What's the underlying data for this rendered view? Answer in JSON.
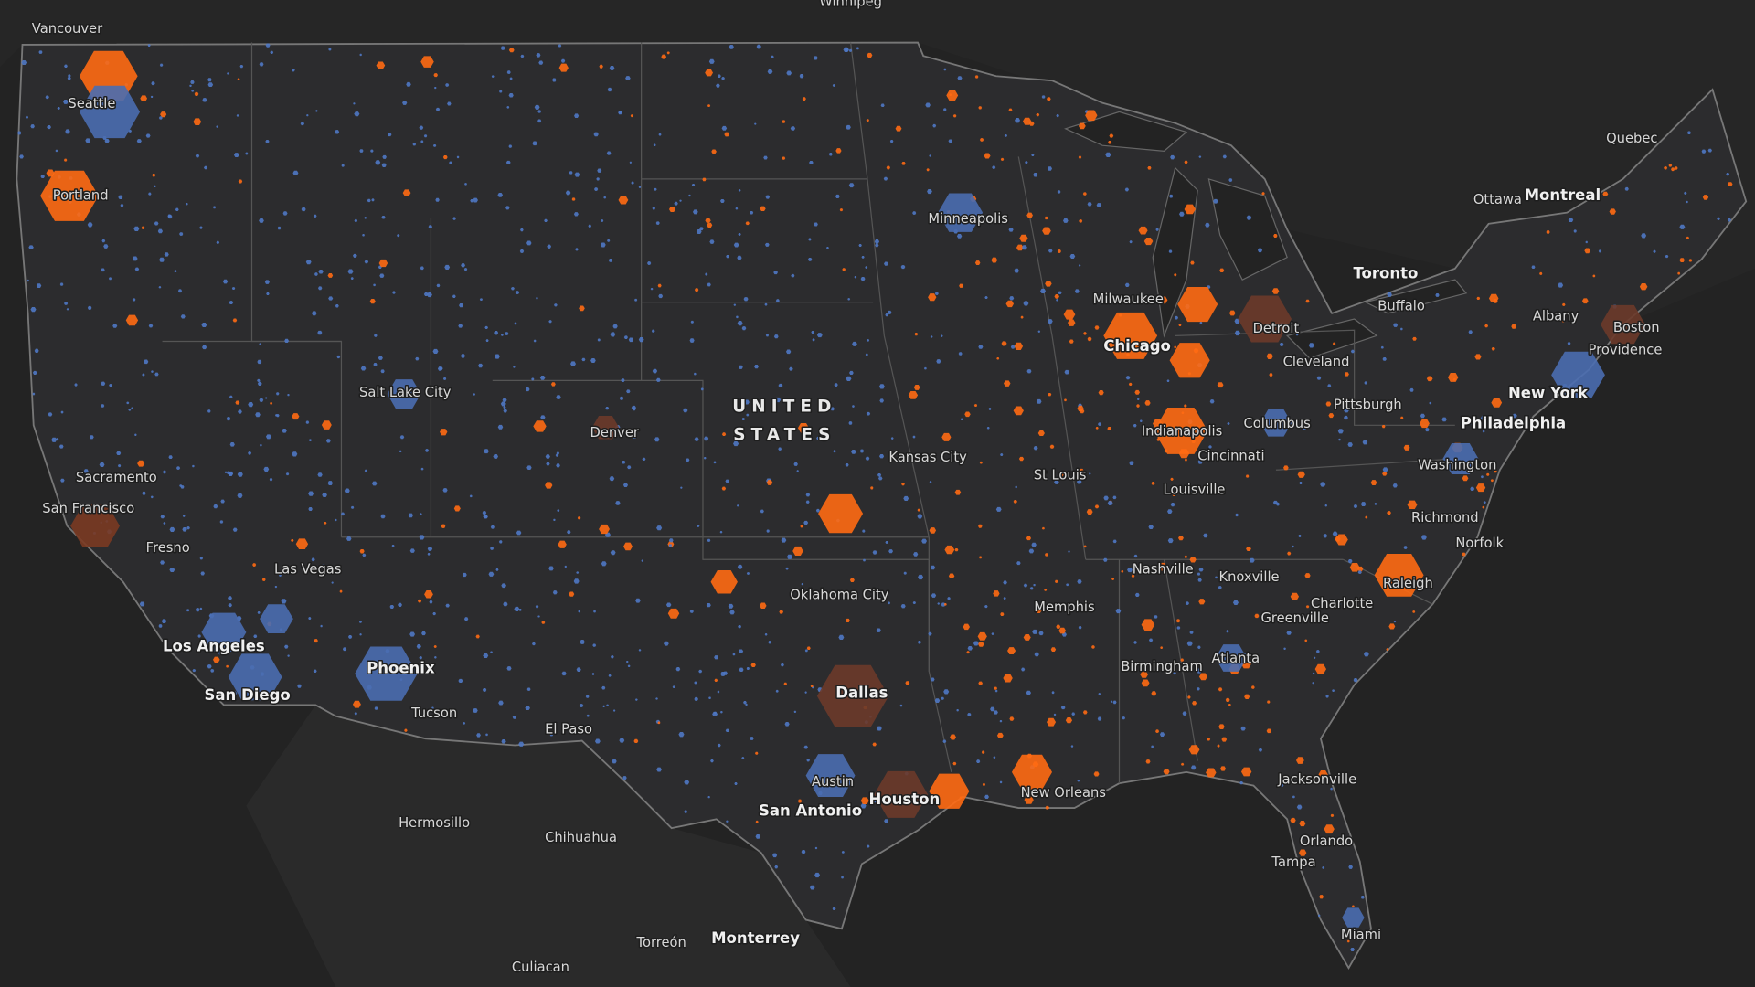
{
  "map": {
    "country_label": [
      "UNITED",
      "STATES"
    ],
    "cities": [
      "Vancouver",
      "Winnipeg",
      "Seattle",
      "Portland",
      "Minneapolis",
      "Milwaukee",
      "Detroit",
      "Chicago",
      "Cleveland",
      "Salt Lake City",
      "Pittsburgh",
      "New York",
      "Philadelphia",
      "Columbus",
      "Indianapolis",
      "Denver",
      "Kansas City",
      "Cincinnati",
      "Washington",
      "St Louis",
      "Sacramento",
      "Louisville",
      "San Francisco",
      "Richmond",
      "Fresno",
      "Norfolk",
      "Las Vegas",
      "Nashville",
      "Knoxville",
      "Raleigh",
      "Oklahoma City",
      "Charlotte",
      "Memphis",
      "Greenville",
      "Los Angeles",
      "Atlanta",
      "Birmingham",
      "Phoenix",
      "Dallas",
      "San Diego",
      "Tucson",
      "El Paso",
      "Jacksonville",
      "Austin",
      "New Orleans",
      "Houston",
      "San Antonio",
      "Hermosillo",
      "Chihuahua",
      "Orlando",
      "Tampa",
      "Miami",
      "Monterrey",
      "Torreón",
      "Culiacan",
      "Toronto",
      "Buffalo",
      "Albany",
      "Boston",
      "Providence",
      "Ottawa",
      "Montreal",
      "Quebec"
    ]
  }
}
